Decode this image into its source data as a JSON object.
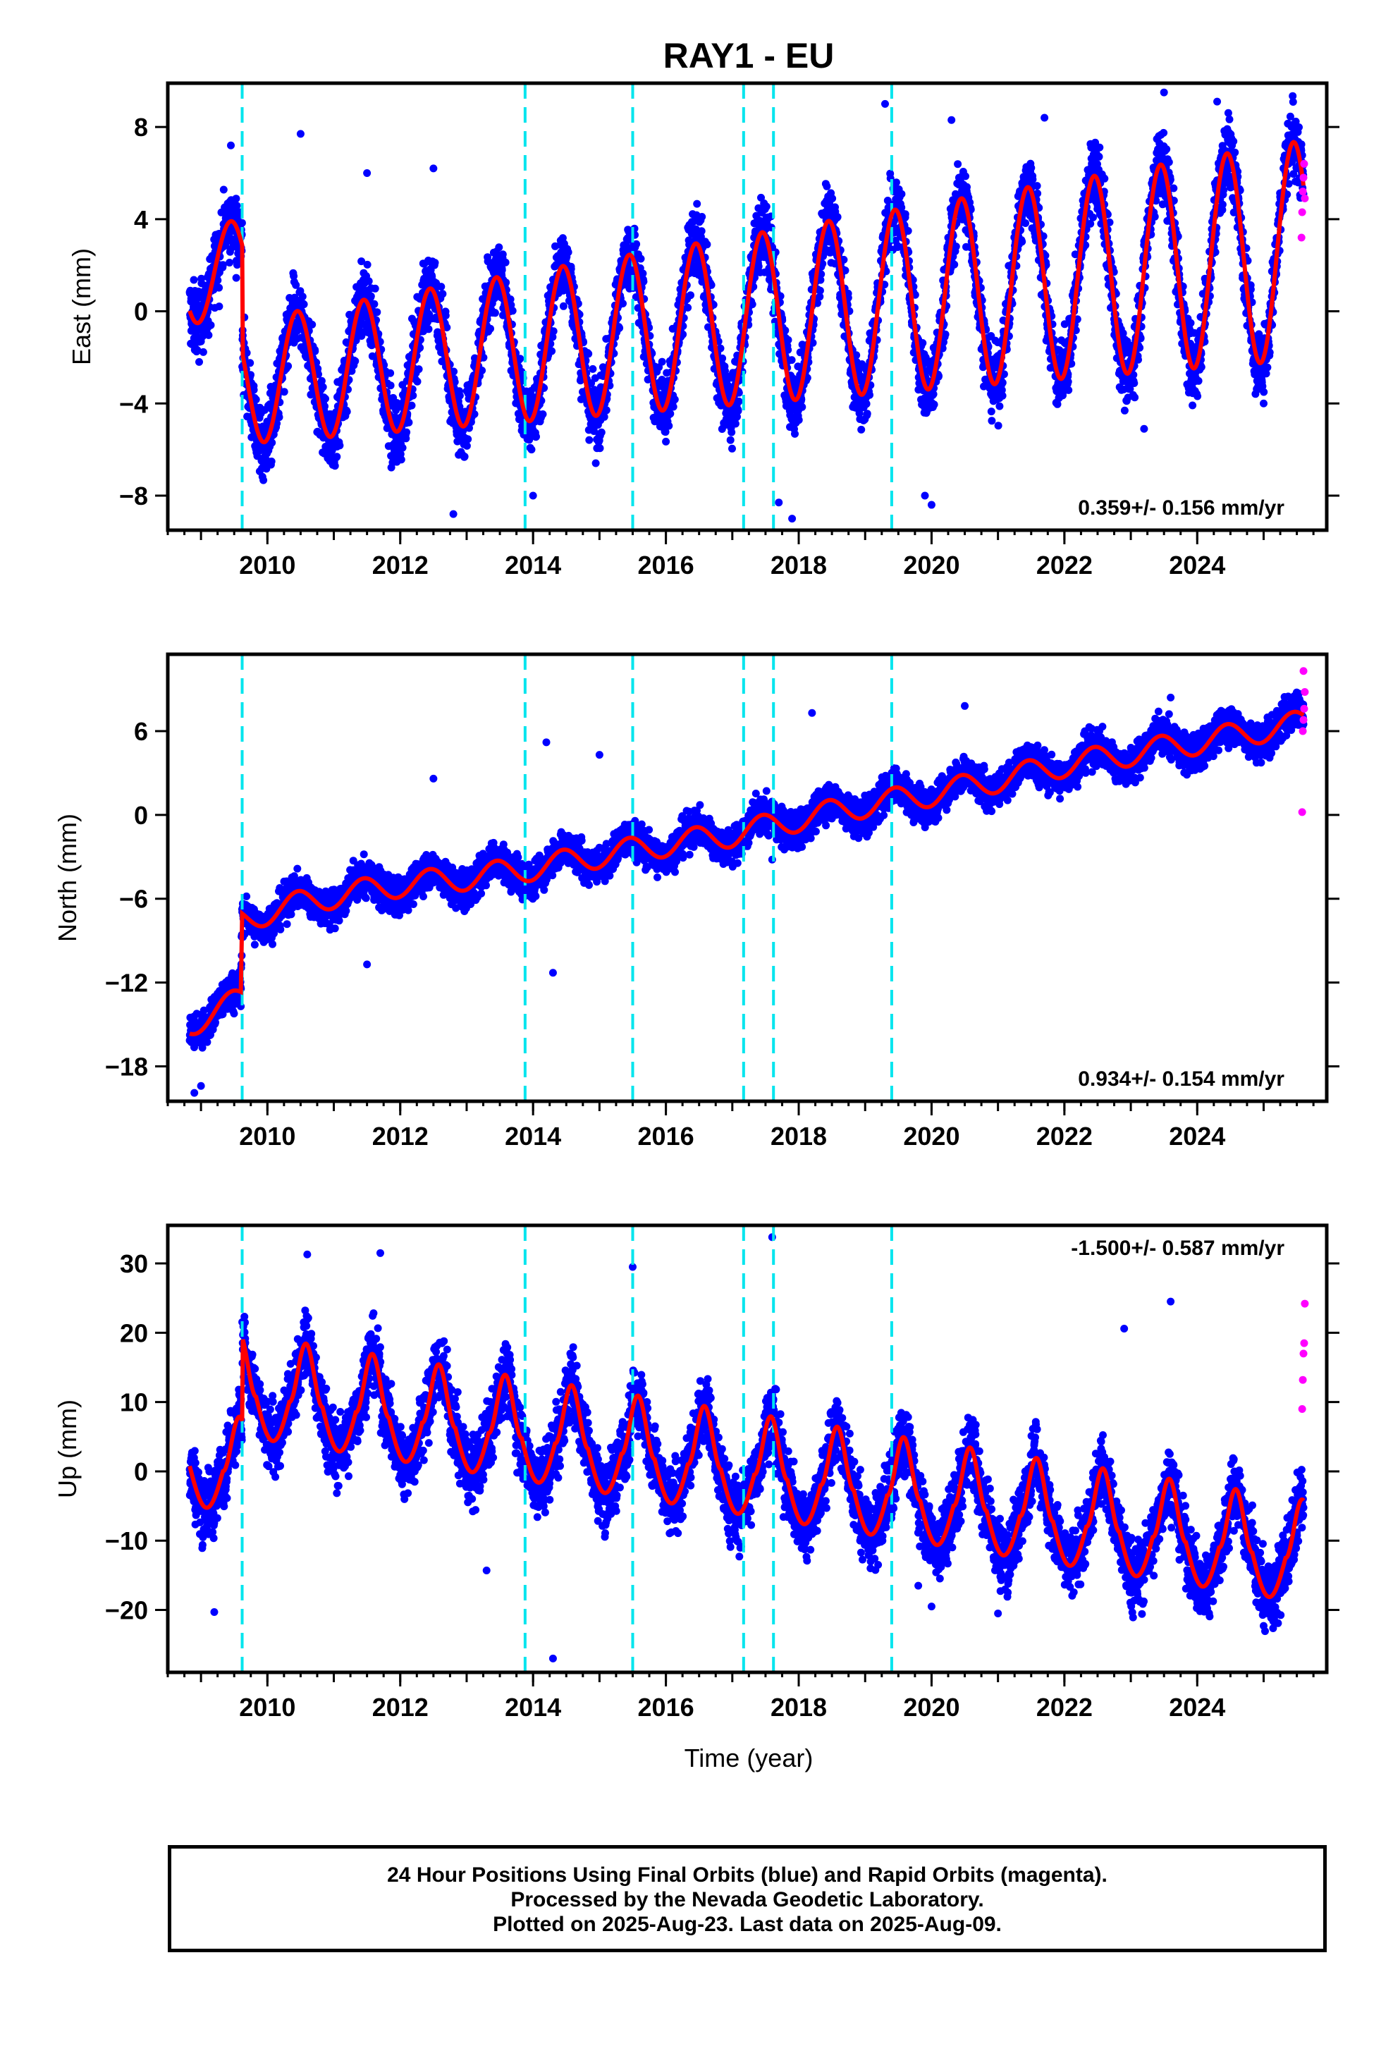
{
  "title": "RAY1 - EU",
  "xlabel": "Time (year)",
  "footer": {
    "line1": "24 Hour Positions Using Final Orbits (blue) and Rapid Orbits (magenta).",
    "line2": "Processed by the Nevada Geodetic Laboratory.",
    "line3": "Plotted on 2025-Aug-23. Last data on 2025-Aug-09."
  },
  "colors": {
    "final": "#0000ff",
    "rapid": "#ff00ff",
    "model": "#ff0000",
    "events": "#00e5ee",
    "frame": "#000000"
  },
  "chart_data": [
    {
      "type": "scatter",
      "component": "East",
      "ylabel": "East (mm)",
      "rate_label": "0.359+/- 0.156 mm/yr",
      "rate_position": "bottom-right",
      "xlim": [
        2008.5,
        2025.95
      ],
      "ylim": [
        -9.5,
        9.9
      ],
      "xticks": [
        2010,
        2012,
        2014,
        2016,
        2018,
        2020,
        2022,
        2024
      ],
      "yticks": [
        -8,
        -4,
        0,
        4,
        8
      ],
      "events": [
        2009.62,
        2013.88,
        2015.5,
        2017.17,
        2017.62,
        2019.4
      ],
      "data_start": 2008.83,
      "data_end": 2025.6,
      "model": {
        "segments": [
          {
            "start": 2008.83,
            "end": 2009.62,
            "offset": 1.6,
            "slope": 0.359,
            "amp": 2.1,
            "peak": 0.45
          },
          {
            "start": 2009.62,
            "end": 2025.6,
            "offset": -3.3,
            "slope": 0.359,
            "amp": 2.6,
            "peak": 0.45
          }
        ],
        "amp_growth": 0.05
      },
      "scatter": 1.3,
      "outliers": [
        [
          2009.45,
          7.2
        ],
        [
          2010.5,
          7.7
        ],
        [
          2011.5,
          6.0
        ],
        [
          2012.5,
          6.2
        ],
        [
          2012.8,
          -8.8
        ],
        [
          2014.0,
          -8.0
        ],
        [
          2017.7,
          -8.3
        ],
        [
          2017.9,
          -9.0
        ],
        [
          2019.3,
          9.0
        ],
        [
          2019.9,
          -8.0
        ],
        [
          2020.0,
          -8.4
        ],
        [
          2020.3,
          8.3
        ],
        [
          2021.7,
          8.4
        ],
        [
          2023.2,
          -5.1
        ],
        [
          2023.5,
          9.5
        ],
        [
          2024.3,
          9.1
        ],
        [
          2025.0,
          -4.0
        ]
      ],
      "rapid": [
        [
          2025.57,
          3.2
        ],
        [
          2025.58,
          4.3
        ],
        [
          2025.59,
          5.2
        ],
        [
          2025.6,
          5.8
        ],
        [
          2025.61,
          6.4
        ],
        [
          2025.62,
          4.9
        ]
      ]
    },
    {
      "type": "scatter",
      "component": "North",
      "ylabel": "North (mm)",
      "rate_label": "0.934+/- 0.154 mm/yr",
      "rate_position": "bottom-right",
      "xlim": [
        2008.5,
        2025.95
      ],
      "ylim": [
        -20.5,
        11.5
      ],
      "xticks": [
        2010,
        2012,
        2014,
        2016,
        2018,
        2020,
        2022,
        2024
      ],
      "yticks": [
        -18,
        -12,
        -6,
        0,
        6
      ],
      "events": [
        2009.62,
        2013.88,
        2015.5,
        2017.17,
        2017.62,
        2019.4
      ],
      "data_start": 2008.83,
      "data_end": 2025.6,
      "trend_points": [
        [
          2008.83,
          -15.0
        ],
        [
          2009.6,
          -13.2
        ],
        [
          2009.62,
          -7.5
        ],
        [
          2010.5,
          -6.3
        ],
        [
          2011.0,
          -5.8
        ],
        [
          2012.0,
          -5.0
        ],
        [
          2013.0,
          -4.5
        ],
        [
          2014.0,
          -3.8
        ],
        [
          2015.0,
          -2.9
        ],
        [
          2016.0,
          -2.1
        ],
        [
          2017.0,
          -1.4
        ],
        [
          2018.0,
          -0.3
        ],
        [
          2019.0,
          0.7
        ],
        [
          2020.0,
          1.5
        ],
        [
          2021.0,
          2.5
        ],
        [
          2022.0,
          3.6
        ],
        [
          2023.0,
          4.4
        ],
        [
          2024.0,
          5.2
        ],
        [
          2025.6,
          6.6
        ]
      ],
      "seasonal_amp": 0.9,
      "scatter": 1.1,
      "outliers": [
        [
          2008.9,
          -19.9
        ],
        [
          2009.0,
          -19.4
        ],
        [
          2011.5,
          -10.7
        ],
        [
          2012.5,
          2.6
        ],
        [
          2014.3,
          -11.3
        ],
        [
          2014.2,
          5.2
        ],
        [
          2015.0,
          4.3
        ],
        [
          2017.6,
          -3.2
        ],
        [
          2018.2,
          7.3
        ],
        [
          2020.5,
          7.8
        ],
        [
          2023.6,
          8.4
        ]
      ],
      "rapid": [
        [
          2025.58,
          0.2
        ],
        [
          2025.59,
          6.0
        ],
        [
          2025.6,
          6.8
        ],
        [
          2025.61,
          7.6
        ],
        [
          2025.62,
          8.8
        ],
        [
          2025.6,
          10.3
        ]
      ]
    },
    {
      "type": "scatter",
      "component": "Up",
      "ylabel": "Up (mm)",
      "rate_label": "-1.500+/- 0.587 mm/yr",
      "rate_position": "top-right",
      "xlim": [
        2008.5,
        2025.95
      ],
      "ylim": [
        -29,
        35.5
      ],
      "xticks": [
        2010,
        2012,
        2014,
        2016,
        2018,
        2020,
        2022,
        2024
      ],
      "yticks": [
        -20,
        -10,
        0,
        10,
        20,
        30
      ],
      "events": [
        2009.62,
        2013.88,
        2015.5,
        2017.17,
        2017.62,
        2019.4
      ],
      "data_start": 2008.83,
      "data_end": 2025.6,
      "model": {
        "segments": [
          {
            "start": 2008.83,
            "end": 2009.62,
            "offset": 0.5,
            "slope": -1.5,
            "amp": 7.5,
            "peak": 0.58
          },
          {
            "start": 2009.62,
            "end": 2025.6,
            "offset": 12.0,
            "slope": -1.5,
            "amp": 8.0,
            "peak": 0.58
          }
        ],
        "amp_growth": 0.0
      },
      "scatter": 4.2,
      "outliers": [
        [
          2009.2,
          -20.3
        ],
        [
          2010.6,
          31.3
        ],
        [
          2011.7,
          31.5
        ],
        [
          2013.3,
          -14.3
        ],
        [
          2014.3,
          -27.0
        ],
        [
          2015.5,
          29.5
        ],
        [
          2017.6,
          33.8
        ],
        [
          2019.8,
          -16.5
        ],
        [
          2020.0,
          -19.5
        ],
        [
          2021.0,
          -20.5
        ],
        [
          2022.9,
          20.6
        ],
        [
          2023.6,
          24.5
        ],
        [
          2024.0,
          -19.0
        ]
      ],
      "rapid": [
        [
          2025.58,
          9.0
        ],
        [
          2025.59,
          13.2
        ],
        [
          2025.6,
          17.0
        ],
        [
          2025.61,
          18.5
        ],
        [
          2025.62,
          24.2
        ]
      ]
    }
  ]
}
